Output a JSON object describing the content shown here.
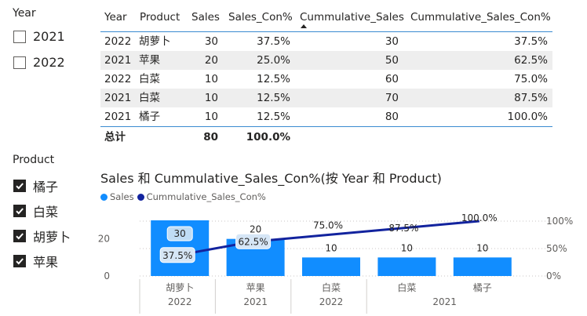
{
  "slicer_year": {
    "title": "Year",
    "items": [
      {
        "label": "2021",
        "checked": false
      },
      {
        "label": "2022",
        "checked": false
      }
    ]
  },
  "slicer_product": {
    "title": "Product",
    "items": [
      {
        "label": "橘子",
        "checked": true
      },
      {
        "label": "白菜",
        "checked": true
      },
      {
        "label": "胡萝卜",
        "checked": true
      },
      {
        "label": "苹果",
        "checked": true
      }
    ]
  },
  "table": {
    "headers": [
      "Year",
      "Product",
      "Sales",
      "Sales_Con%",
      "Cummulative_Sales",
      "Cummulative_Sales_Con%"
    ],
    "rows": [
      [
        "2022",
        "胡萝卜",
        "30",
        "37.5%",
        "30",
        "37.5%"
      ],
      [
        "2021",
        "苹果",
        "20",
        "25.0%",
        "50",
        "62.5%"
      ],
      [
        "2022",
        "白菜",
        "10",
        "12.5%",
        "60",
        "75.0%"
      ],
      [
        "2021",
        "白菜",
        "10",
        "12.5%",
        "70",
        "87.5%"
      ],
      [
        "2021",
        "橘子",
        "10",
        "12.5%",
        "80",
        "100.0%"
      ]
    ],
    "total": {
      "label": "总计",
      "sales": "80",
      "sales_con": "100.0%"
    }
  },
  "chart_title": "Sales 和 Cummulative_Sales_Con%(按 Year 和 Product)",
  "chart_data": {
    "type": "bar",
    "title": "Sales 和 Cummulative_Sales_Con%(按 Year 和 Product)",
    "categories": [
      "胡萝卜",
      "苹果",
      "白菜",
      "白菜",
      "橘子"
    ],
    "category_groups": [
      "2022",
      "2021",
      "2022",
      "2021"
    ],
    "series": [
      {
        "name": "Sales",
        "type": "bar",
        "axis": "left",
        "values": [
          30,
          20,
          10,
          10,
          10
        ],
        "labels": [
          "30",
          "20",
          "10",
          "10",
          "10"
        ],
        "color": "#118dff"
      },
      {
        "name": "Cummulative_Sales_Con%",
        "type": "line",
        "axis": "right",
        "values": [
          37.5,
          62.5,
          75.0,
          87.5,
          100.0
        ],
        "labels": [
          "37.5%",
          "62.5%",
          "75.0%",
          "87.5%",
          "100.0%"
        ],
        "color": "#12239e"
      }
    ],
    "y_left": {
      "ticks": [
        "0",
        "20"
      ],
      "range": [
        0,
        30
      ]
    },
    "y_right": {
      "ticks": [
        "0%",
        "50%",
        "100%"
      ],
      "range": [
        0,
        100
      ]
    },
    "legend": "top-left",
    "grid": true
  }
}
